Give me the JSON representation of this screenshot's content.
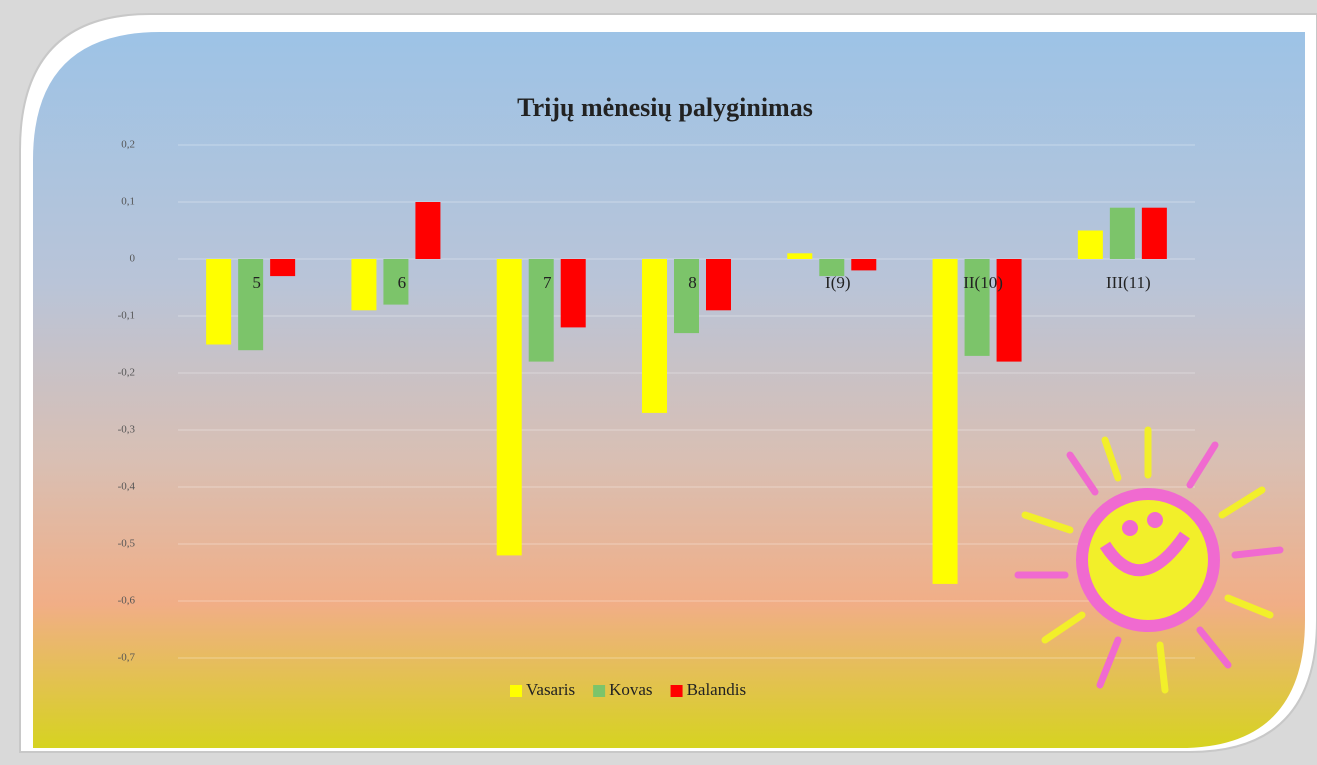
{
  "chart_data": {
    "type": "bar",
    "title": "Trijų mėnesių palyginimas",
    "categories": [
      "5",
      "6",
      "7",
      "8",
      "I(9)",
      "II(10)",
      "III(11)"
    ],
    "series": [
      {
        "name": "Vasaris",
        "color": "#ffff00",
        "values": [
          -0.15,
          -0.09,
          -0.52,
          -0.27,
          0.01,
          -0.57,
          0.05
        ]
      },
      {
        "name": "Kovas",
        "color": "#7cc46a",
        "values": [
          -0.16,
          -0.08,
          -0.18,
          -0.13,
          -0.03,
          -0.17,
          0.09
        ]
      },
      {
        "name": "Balandis",
        "color": "#ff0000",
        "values": [
          -0.03,
          0.1,
          -0.12,
          -0.09,
          -0.02,
          -0.18,
          0.09
        ]
      }
    ],
    "ylim": [
      -0.7,
      0.2
    ],
    "yticks": [
      {
        "value": 0.2,
        "label": "0,2"
      },
      {
        "value": 0.1,
        "label": "0,1"
      },
      0,
      {
        "value": -0.1,
        "label": "-0,1"
      },
      {
        "value": -0.2,
        "label": "-0,2"
      },
      {
        "value": -0.3,
        "label": "-0,3"
      },
      {
        "value": -0.4,
        "label": "-0,4"
      },
      {
        "value": -0.5,
        "label": "-0,5"
      },
      {
        "value": -0.6,
        "label": "-0,6"
      },
      {
        "value": -0.7,
        "label": "-0,7"
      }
    ],
    "grid": true,
    "legend": "bottom"
  }
}
